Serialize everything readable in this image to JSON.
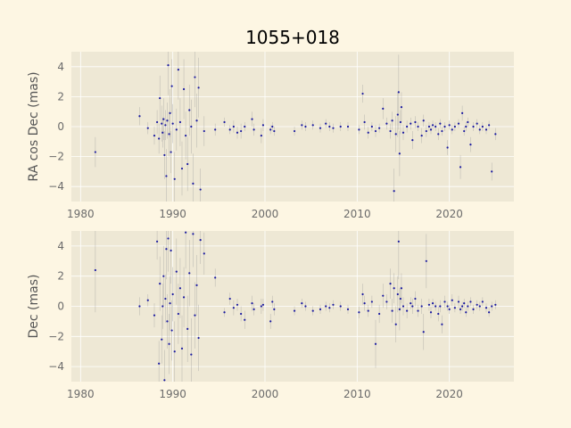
{
  "colors": {
    "figure_bg": "#fdf6e3",
    "axes_bg": "#eee8d5",
    "point": "#1a1aa0",
    "errorbar": "#9a9a9a",
    "tick_text": "#6b6b6b"
  },
  "chart_data": [
    {
      "type": "scatter",
      "title": "1055+018",
      "ylabel": "RA cos Dec (mas)",
      "xlabel": "",
      "xlim": [
        1979,
        2027
      ],
      "ylim": [
        -5,
        5
      ],
      "xticks": [
        1980,
        1990,
        2000,
        2010,
        2020
      ],
      "yticks": [
        -4,
        -2,
        0,
        2,
        4
      ],
      "xtick_labels": [
        "1980",
        "1990",
        "2000",
        "2010",
        "2020"
      ],
      "ytick_labels": [
        "−4",
        "−2",
        "0",
        "2",
        "4"
      ],
      "grid": true,
      "series": [
        {
          "x": [
            1981.6,
            1986.4,
            1987.3,
            1988.0,
            1988.3,
            1988.5,
            1988.6,
            1988.8,
            1988.9,
            1989.0,
            1989.1,
            1989.2,
            1989.3,
            1989.4,
            1989.5,
            1989.6,
            1989.7,
            1989.8,
            1989.9,
            1990.0,
            1990.2,
            1990.4,
            1990.6,
            1990.8,
            1991.0,
            1991.2,
            1991.4,
            1991.6,
            1991.8,
            1992.0,
            1992.2,
            1992.4,
            1992.6,
            1992.8,
            1993.0,
            1993.4,
            1994.6,
            1995.6,
            1996.2,
            1996.6,
            1997.0,
            1997.4,
            1997.8,
            1998.6,
            1998.8,
            1999.6,
            1999.8,
            2000.6,
            2000.8,
            2001.0,
            2003.2,
            2004.0,
            2004.4,
            2005.2,
            2006.0,
            2006.6,
            2007.0,
            2007.4,
            2008.2,
            2009.0,
            2010.2,
            2010.6,
            2010.8,
            2011.2,
            2011.6,
            2012.0,
            2012.4,
            2012.8,
            2013.2,
            2013.6,
            2013.8,
            2014.0,
            2014.2,
            2014.4,
            2014.5,
            2014.6,
            2014.7,
            2014.8,
            2015.0,
            2015.4,
            2015.8,
            2016.0,
            2016.3,
            2016.6,
            2017.0,
            2017.2,
            2017.5,
            2017.8,
            2018.0,
            2018.2,
            2018.5,
            2018.8,
            2019.0,
            2019.2,
            2019.5,
            2019.8,
            2020.0,
            2020.3,
            2020.6,
            2021.0,
            2021.2,
            2021.4,
            2021.6,
            2021.8,
            2022.0,
            2022.3,
            2022.6,
            2023.0,
            2023.3,
            2023.6,
            2024.0,
            2024.3,
            2024.6,
            2025.0
          ],
          "y": [
            -1.7,
            0.7,
            -0.1,
            -0.6,
            0.3,
            -0.8,
            1.9,
            0.2,
            -0.4,
            0.5,
            -1.9,
            0.1,
            -3.3,
            0.4,
            4.1,
            -0.5,
            0.9,
            -1.7,
            2.7,
            0.2,
            -3.5,
            -0.2,
            3.8,
            0.3,
            -2.8,
            2.5,
            -0.6,
            -2.5,
            1.1,
            0.0,
            -3.8,
            3.3,
            0.4,
            2.6,
            -4.2,
            -0.3,
            -0.2,
            0.3,
            -0.2,
            0.0,
            -0.4,
            -0.3,
            0.0,
            0.5,
            -0.2,
            -0.6,
            0.1,
            -0.2,
            0.0,
            -0.3,
            -0.3,
            0.1,
            0.0,
            0.1,
            -0.1,
            0.2,
            0.0,
            -0.1,
            0.0,
            0.0,
            -0.2,
            2.2,
            0.3,
            -0.4,
            0.0,
            -0.3,
            -0.1,
            1.2,
            0.2,
            -0.3,
            0.4,
            -4.3,
            -0.5,
            0.8,
            2.3,
            -1.8,
            0.3,
            1.3,
            -0.4,
            0.0,
            0.2,
            -0.9,
            0.3,
            0.0,
            -0.6,
            0.4,
            -0.3,
            0.0,
            -0.2,
            0.1,
            0.0,
            -0.5,
            0.2,
            -0.3,
            0.0,
            -1.4,
            0.1,
            -0.2,
            0.0,
            0.2,
            -2.7,
            0.9,
            -0.3,
            0.0,
            0.3,
            -1.2,
            0.0,
            0.2,
            -0.2,
            0.0,
            -0.2,
            0.1,
            -3.0,
            -0.5
          ],
          "err": [
            1.0,
            0.6,
            0.4,
            0.6,
            0.8,
            1.0,
            1.5,
            1.2,
            1.0,
            1.4,
            1.6,
            1.0,
            1.8,
            1.2,
            2.0,
            1.5,
            1.6,
            1.4,
            1.8,
            1.3,
            1.8,
            1.4,
            2.0,
            1.6,
            1.8,
            2.0,
            1.6,
            1.8,
            1.7,
            1.8,
            2.0,
            2.0,
            1.8,
            2.0,
            1.4,
            1.0,
            0.4,
            0.3,
            0.3,
            0.4,
            0.4,
            0.5,
            0.3,
            0.5,
            0.4,
            0.5,
            0.4,
            0.3,
            0.3,
            0.3,
            0.3,
            0.3,
            0.3,
            0.3,
            0.3,
            0.3,
            0.3,
            0.3,
            0.3,
            0.3,
            0.3,
            0.6,
            0.5,
            0.4,
            0.3,
            0.4,
            0.3,
            0.7,
            0.4,
            0.5,
            0.6,
            1.5,
            1.2,
            1.5,
            2.5,
            1.5,
            0.8,
            1.0,
            0.5,
            0.4,
            0.4,
            0.6,
            0.4,
            0.3,
            0.5,
            0.4,
            0.4,
            0.3,
            0.3,
            0.3,
            0.3,
            0.4,
            0.3,
            0.3,
            0.3,
            0.5,
            0.3,
            0.3,
            0.3,
            0.3,
            0.8,
            0.5,
            0.3,
            0.3,
            0.3,
            0.5,
            0.3,
            0.3,
            0.3,
            0.3,
            0.3,
            0.3,
            0.6,
            0.4
          ]
        }
      ]
    },
    {
      "type": "scatter",
      "title": "",
      "ylabel": "Dec (mas)",
      "xlabel": "",
      "xlim": [
        1979,
        2027
      ],
      "ylim": [
        -5,
        5
      ],
      "xticks": [
        1980,
        1990,
        2000,
        2010,
        2020
      ],
      "yticks": [
        -4,
        -2,
        0,
        2,
        4
      ],
      "xtick_labels": [
        "1980",
        "1990",
        "2000",
        "2010",
        "2020"
      ],
      "ytick_labels": [
        "−4",
        "−2",
        "0",
        "2",
        "4"
      ],
      "grid": true,
      "series": [
        {
          "x": [
            1981.6,
            1986.4,
            1987.3,
            1988.0,
            1988.3,
            1988.5,
            1988.6,
            1988.8,
            1988.9,
            1989.0,
            1989.1,
            1989.2,
            1989.3,
            1989.4,
            1989.5,
            1989.6,
            1989.7,
            1989.8,
            1989.9,
            1990.0,
            1990.2,
            1990.4,
            1990.6,
            1990.8,
            1991.0,
            1991.2,
            1991.4,
            1991.6,
            1991.8,
            1992.0,
            1992.2,
            1992.4,
            1992.6,
            1992.8,
            1993.0,
            1993.4,
            1994.6,
            1995.6,
            1996.2,
            1996.6,
            1997.0,
            1997.4,
            1997.8,
            1998.6,
            1998.8,
            1999.6,
            1999.8,
            2000.6,
            2000.8,
            2001.0,
            2003.2,
            2004.0,
            2004.4,
            2005.2,
            2006.0,
            2006.6,
            2007.0,
            2007.4,
            2008.2,
            2009.0,
            2010.2,
            2010.6,
            2010.8,
            2011.2,
            2011.6,
            2012.0,
            2012.4,
            2012.8,
            2013.2,
            2013.6,
            2013.8,
            2014.0,
            2014.2,
            2014.4,
            2014.5,
            2014.6,
            2014.7,
            2014.8,
            2015.0,
            2015.4,
            2015.8,
            2016.0,
            2016.3,
            2016.6,
            2017.0,
            2017.2,
            2017.5,
            2017.8,
            2018.0,
            2018.2,
            2018.5,
            2018.8,
            2019.0,
            2019.2,
            2019.5,
            2019.8,
            2020.0,
            2020.3,
            2020.6,
            2021.0,
            2021.2,
            2021.4,
            2021.6,
            2021.8,
            2022.0,
            2022.3,
            2022.6,
            2023.0,
            2023.3,
            2023.6,
            2024.0,
            2024.3,
            2024.6,
            2025.0
          ],
          "y": [
            2.4,
            0.0,
            0.4,
            -0.6,
            4.3,
            -3.8,
            1.5,
            -2.2,
            0.0,
            2.0,
            -4.9,
            0.5,
            3.8,
            -1.0,
            4.5,
            -2.5,
            0.2,
            3.7,
            -1.6,
            0.8,
            -3.0,
            2.3,
            -0.5,
            1.2,
            -2.8,
            0.6,
            4.9,
            -1.5,
            2.2,
            -3.2,
            4.8,
            -0.6,
            1.4,
            -2.1,
            4.4,
            3.5,
            1.9,
            -0.4,
            0.5,
            -0.1,
            0.1,
            -0.5,
            -0.9,
            0.2,
            -0.2,
            0.0,
            0.1,
            -1.0,
            0.3,
            -0.2,
            -0.3,
            0.2,
            0.0,
            -0.3,
            -0.2,
            0.0,
            -0.1,
            0.1,
            0.0,
            -0.2,
            -0.4,
            0.8,
            0.2,
            -0.3,
            0.3,
            -2.5,
            -0.5,
            0.7,
            0.3,
            1.5,
            -0.3,
            1.2,
            -1.2,
            0.8,
            4.3,
            -0.2,
            0.5,
            1.2,
            0.0,
            -0.3,
            0.2,
            0.0,
            0.5,
            -0.3,
            0.0,
            -1.7,
            3.0,
            0.1,
            -0.4,
            0.2,
            0.0,
            -0.5,
            0.0,
            -1.2,
            0.3,
            0.0,
            -0.2,
            0.4,
            -0.1,
            0.3,
            -0.2,
            0.0,
            0.2,
            -0.4,
            0.0,
            0.3,
            -0.2,
            0.1,
            0.0,
            0.3,
            -0.1,
            -0.4,
            0.0,
            0.1
          ],
          "err": [
            2.8,
            0.6,
            0.4,
            0.8,
            1.2,
            1.5,
            1.8,
            1.6,
            1.5,
            2.0,
            2.0,
            1.6,
            2.0,
            1.8,
            2.2,
            2.0,
            1.8,
            2.2,
            2.0,
            1.8,
            2.0,
            2.2,
            2.0,
            2.0,
            2.2,
            2.0,
            2.4,
            2.2,
            2.2,
            2.4,
            2.2,
            2.2,
            2.0,
            2.2,
            1.6,
            1.4,
            0.6,
            0.3,
            0.4,
            0.5,
            0.4,
            0.5,
            0.6,
            0.5,
            0.4,
            0.5,
            0.4,
            0.5,
            0.4,
            0.4,
            0.3,
            0.3,
            0.3,
            0.3,
            0.3,
            0.3,
            0.3,
            0.3,
            0.3,
            0.3,
            0.4,
            0.7,
            0.5,
            0.4,
            0.4,
            1.6,
            0.6,
            0.8,
            0.5,
            1.0,
            0.8,
            1.0,
            1.2,
            1.2,
            2.5,
            1.4,
            0.8,
            1.0,
            0.6,
            0.5,
            0.4,
            0.5,
            0.5,
            0.4,
            0.5,
            1.2,
            1.8,
            0.4,
            0.4,
            0.3,
            0.3,
            0.5,
            0.4,
            0.6,
            0.4,
            0.3,
            0.3,
            0.4,
            0.3,
            0.4,
            0.3,
            0.3,
            0.3,
            0.3,
            0.3,
            0.3,
            0.3,
            0.3,
            0.3,
            0.3,
            0.3,
            0.3,
            0.3,
            0.3
          ]
        }
      ]
    }
  ]
}
